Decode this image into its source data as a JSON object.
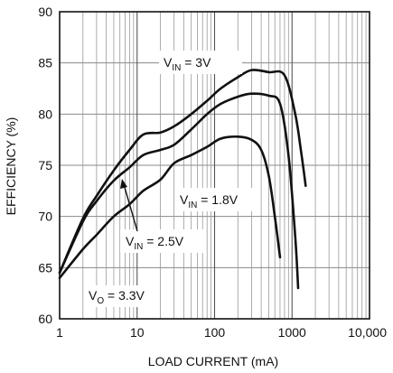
{
  "chart_data": {
    "type": "line",
    "title": "",
    "xlabel": "LOAD CURRENT (mA)",
    "ylabel": "EFFICIENCY (%)",
    "x_scale": "log",
    "xlim": [
      1,
      10000
    ],
    "ylim": [
      60,
      90
    ],
    "x_ticks": [
      1,
      10,
      100,
      1000,
      10000
    ],
    "x_tick_labels": [
      "1",
      "10",
      "100",
      "1000",
      "10,000"
    ],
    "y_ticks": [
      60,
      65,
      70,
      75,
      80,
      85,
      90
    ],
    "y_tick_labels": [
      "60",
      "65",
      "70",
      "75",
      "80",
      "85",
      "90"
    ],
    "grid": true,
    "line_color": "#111111",
    "series": [
      {
        "id": "vin3",
        "label_main": "V",
        "label_sub": "IN",
        "label_rest": " = 3V",
        "x": [
          1,
          2,
          3,
          5,
          8,
          12,
          20,
          30,
          50,
          80,
          120,
          200,
          300,
          500,
          800,
          1100,
          1300,
          1500
        ],
        "y": [
          64.5,
          69.8,
          72.0,
          74.5,
          76.5,
          78.0,
          78.2,
          78.8,
          80.0,
          81.3,
          82.5,
          83.6,
          84.3,
          84.1,
          83.8,
          80.0,
          76.5,
          73.0
        ]
      },
      {
        "id": "vin25",
        "label_main": "V",
        "label_sub": "IN",
        "label_rest": " = 2.5V",
        "x": [
          1,
          2,
          3,
          5,
          8,
          12,
          20,
          30,
          50,
          80,
          120,
          200,
          300,
          500,
          700,
          900,
          1100,
          1200
        ],
        "y": [
          64.5,
          69.5,
          71.5,
          73.5,
          74.8,
          76.0,
          76.5,
          77.0,
          78.5,
          80.0,
          81.0,
          81.7,
          82.0,
          81.8,
          81.0,
          76.0,
          68.0,
          63.0
        ]
      },
      {
        "id": "vin18",
        "label_main": "V",
        "label_sub": "IN",
        "label_rest": " = 1.8V",
        "x": [
          1,
          2,
          3,
          5,
          8,
          12,
          20,
          30,
          50,
          80,
          120,
          200,
          300,
          400,
          500,
          600,
          700
        ],
        "y": [
          64.0,
          66.8,
          68.2,
          70.0,
          71.2,
          72.5,
          73.6,
          75.2,
          76.0,
          76.8,
          77.6,
          77.8,
          77.5,
          76.5,
          74.0,
          70.0,
          66.0
        ]
      }
    ],
    "annotations": {
      "vo": {
        "main": "V",
        "sub": "O",
        "rest": " = 3.3V"
      }
    }
  }
}
